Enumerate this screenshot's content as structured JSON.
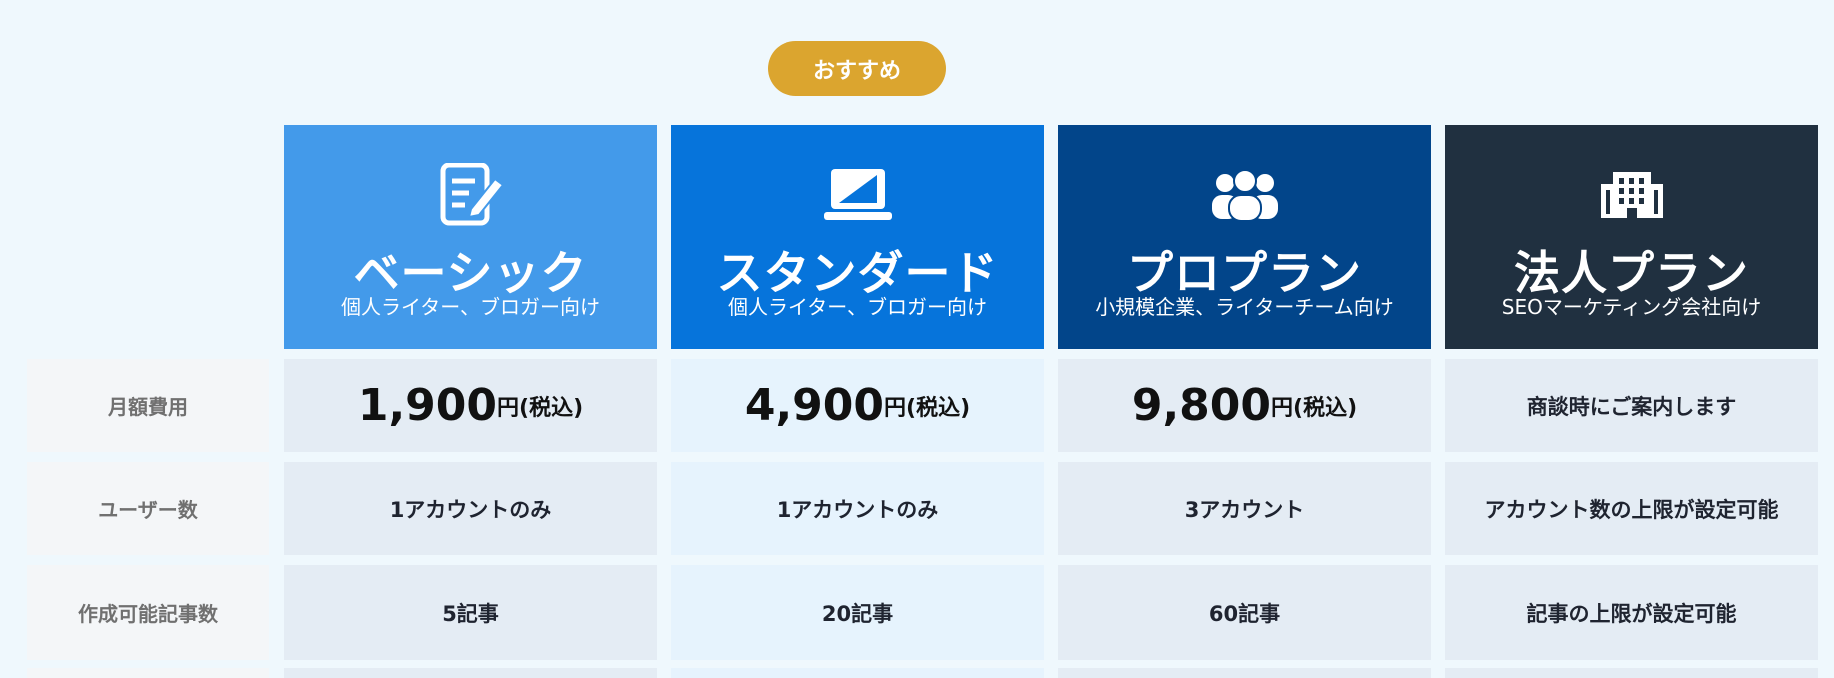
{
  "badge": "おすすめ",
  "plans": [
    {
      "name": "ベーシック",
      "target": "個人ライター、ブロガー向け",
      "icon": "document-edit-icon"
    },
    {
      "name": "スタンダード",
      "target": "個人ライター、ブロガー向け",
      "icon": "laptop-icon"
    },
    {
      "name": "プロプラン",
      "target": "小規模企業、ライターチーム向け",
      "icon": "users-group-icon"
    },
    {
      "name": "法人プラン",
      "target": "SEOマーケティング会社向け",
      "icon": "building-icon"
    }
  ],
  "rows": [
    {
      "label": "月額費用",
      "values": [
        "1,900",
        "4,900",
        "9,800",
        "商談時にご案内します"
      ]
    },
    {
      "label": "ユーザー数",
      "values": [
        "1アカウントのみ",
        "1アカウントのみ",
        "3アカウント",
        "アカウント数の上限が設定可能"
      ]
    },
    {
      "label": "作成可能記事数",
      "values": [
        "5記事",
        "20記事",
        "60記事",
        "記事の上限が設定可能"
      ]
    }
  ],
  "price_unit": "円(税込)",
  "colors": {
    "badge": "#dba52f",
    "basic": "#439aea",
    "standard": "#0674db",
    "pro": "#02458a",
    "corporate": "#203040"
  }
}
